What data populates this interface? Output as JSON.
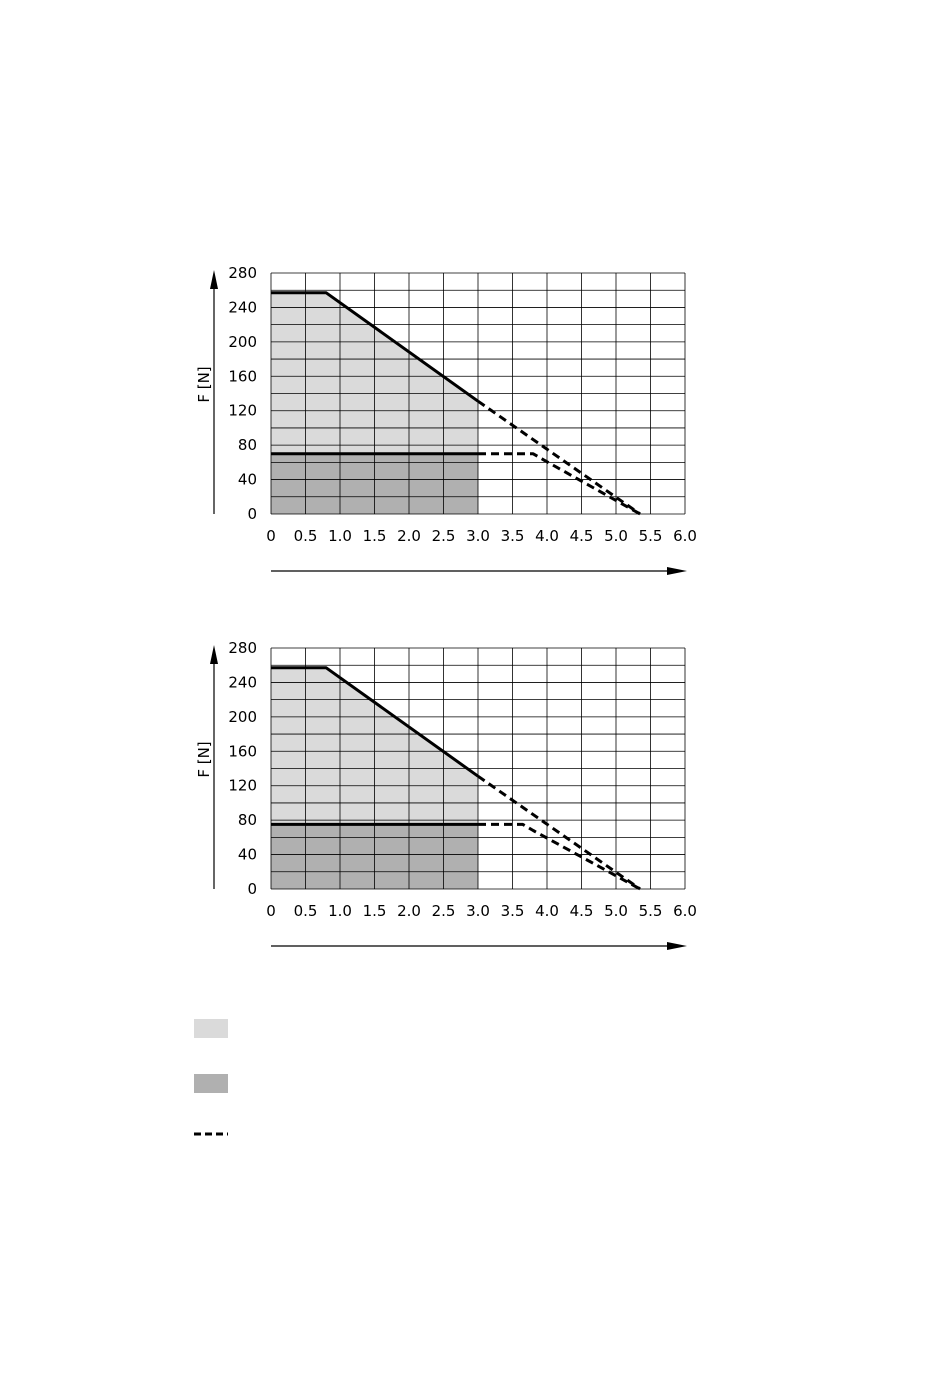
{
  "colors": {
    "light_area": "#dadada",
    "dark_area": "#b0b0b0",
    "grid": "#000000",
    "curve": "#000000"
  },
  "chart_data": [
    {
      "type": "line",
      "ylabel": "F [N]",
      "xlabel": "",
      "xlim": [
        0,
        6.0
      ],
      "ylim": [
        0,
        280
      ],
      "x_ticks": [
        "0",
        "0.5",
        "1.0",
        "1.5",
        "2.0",
        "2.5",
        "3.0",
        "3.5",
        "4.0",
        "4.5",
        "5.0",
        "5.5",
        "6.0"
      ],
      "y_ticks": [
        "0",
        "40",
        "80",
        "120",
        "160",
        "200",
        "240",
        "280"
      ],
      "grid": true,
      "areas": [
        {
          "name": "light",
          "points": [
            [
              0,
              0
            ],
            [
              0,
              257
            ],
            [
              0.8,
              257
            ],
            [
              3.0,
              131
            ],
            [
              3.0,
              0
            ]
          ]
        },
        {
          "name": "dark",
          "points": [
            [
              0,
              0
            ],
            [
              0,
              70
            ],
            [
              3.0,
              70
            ],
            [
              3.0,
              0
            ]
          ]
        }
      ],
      "series": [
        {
          "style": "solid",
          "points": [
            [
              0,
              257
            ],
            [
              0.8,
              257
            ],
            [
              3.0,
              131
            ]
          ]
        },
        {
          "style": "dashed",
          "points": [
            [
              3.0,
              131
            ],
            [
              5.35,
              0
            ]
          ]
        },
        {
          "style": "solid",
          "points": [
            [
              0,
              70
            ],
            [
              3.0,
              70
            ]
          ]
        },
        {
          "style": "dashed",
          "points": [
            [
              3.0,
              70
            ],
            [
              3.8,
              70
            ],
            [
              3.95,
              63
            ],
            [
              5.35,
              0
            ]
          ]
        }
      ]
    },
    {
      "type": "line",
      "ylabel": "F [N]",
      "xlabel": "",
      "xlim": [
        0,
        6.0
      ],
      "ylim": [
        0,
        280
      ],
      "x_ticks": [
        "0",
        "0.5",
        "1.0",
        "1.5",
        "2.0",
        "2.5",
        "3.0",
        "3.5",
        "4.0",
        "4.5",
        "5.0",
        "5.5",
        "6.0"
      ],
      "y_ticks": [
        "0",
        "40",
        "80",
        "120",
        "160",
        "200",
        "240",
        "280"
      ],
      "grid": true,
      "areas": [
        {
          "name": "light",
          "points": [
            [
              0,
              0
            ],
            [
              0,
              257
            ],
            [
              0.8,
              257
            ],
            [
              3.0,
              131
            ],
            [
              3.0,
              0
            ]
          ]
        },
        {
          "name": "dark",
          "points": [
            [
              0,
              0
            ],
            [
              0,
              75
            ],
            [
              3.0,
              75
            ],
            [
              3.0,
              0
            ]
          ]
        }
      ],
      "series": [
        {
          "style": "solid",
          "points": [
            [
              0,
              257
            ],
            [
              0.8,
              257
            ],
            [
              3.0,
              131
            ]
          ]
        },
        {
          "style": "dashed",
          "points": [
            [
              3.0,
              131
            ],
            [
              5.35,
              0
            ]
          ]
        },
        {
          "style": "solid",
          "points": [
            [
              0,
              75
            ],
            [
              3.0,
              75
            ]
          ]
        },
        {
          "style": "dashed",
          "points": [
            [
              3.0,
              75
            ],
            [
              3.65,
              75
            ],
            [
              3.8,
              68
            ],
            [
              5.35,
              0
            ]
          ]
        }
      ]
    }
  ],
  "legend": [
    {
      "kind": "light_area",
      "label": ""
    },
    {
      "kind": "dark_area",
      "label": ""
    },
    {
      "kind": "dashed_line",
      "label": ""
    }
  ]
}
